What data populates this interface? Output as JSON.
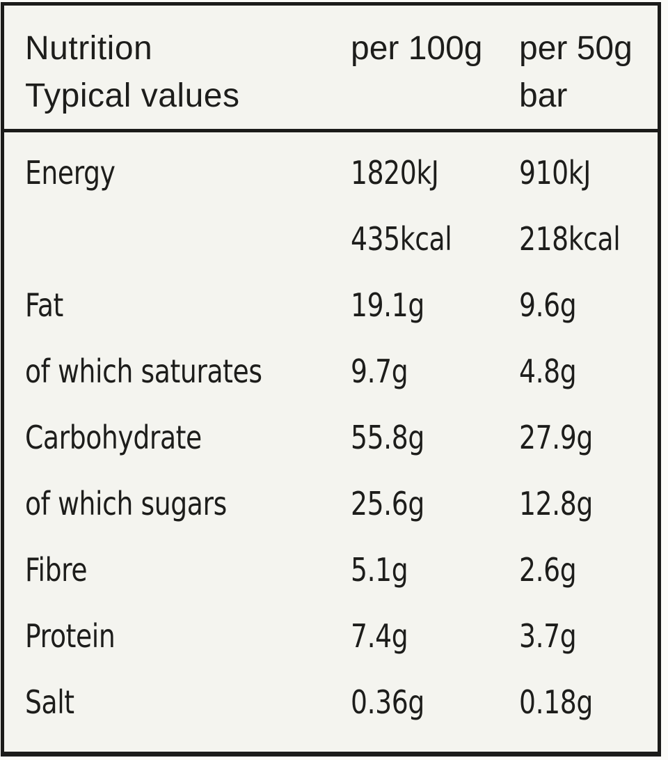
{
  "label": {
    "colors": {
      "background": "#f4f4ef",
      "border": "#1b1b19",
      "text": "#1d1d1b"
    },
    "header": {
      "title_line1": "Nutrition",
      "title_line2": "Typical values",
      "col_per100g": "per 100g",
      "col_per50g_line1": "per 50g",
      "col_per50g_line2": "bar"
    },
    "rows": [
      {
        "name": "Energy",
        "per100": "1820kJ",
        "per50": "910kJ"
      },
      {
        "name": "",
        "per100": "435kcal",
        "per50": "218kcal"
      },
      {
        "name": "Fat",
        "per100": "19.1g",
        "per50": "9.6g"
      },
      {
        "name": "of which saturates",
        "per100": "9.7g",
        "per50": "4.8g"
      },
      {
        "name": "Carbohydrate",
        "per100": "55.8g",
        "per50": "27.9g"
      },
      {
        "name": "of which sugars",
        "per100": "25.6g",
        "per50": "12.8g"
      },
      {
        "name": "Fibre",
        "per100": "5.1g",
        "per50": "2.6g"
      },
      {
        "name": "Protein",
        "per100": "7.4g",
        "per50": "3.7g"
      },
      {
        "name": "Salt",
        "per100": "0.36g",
        "per50": "0.18g"
      }
    ]
  }
}
